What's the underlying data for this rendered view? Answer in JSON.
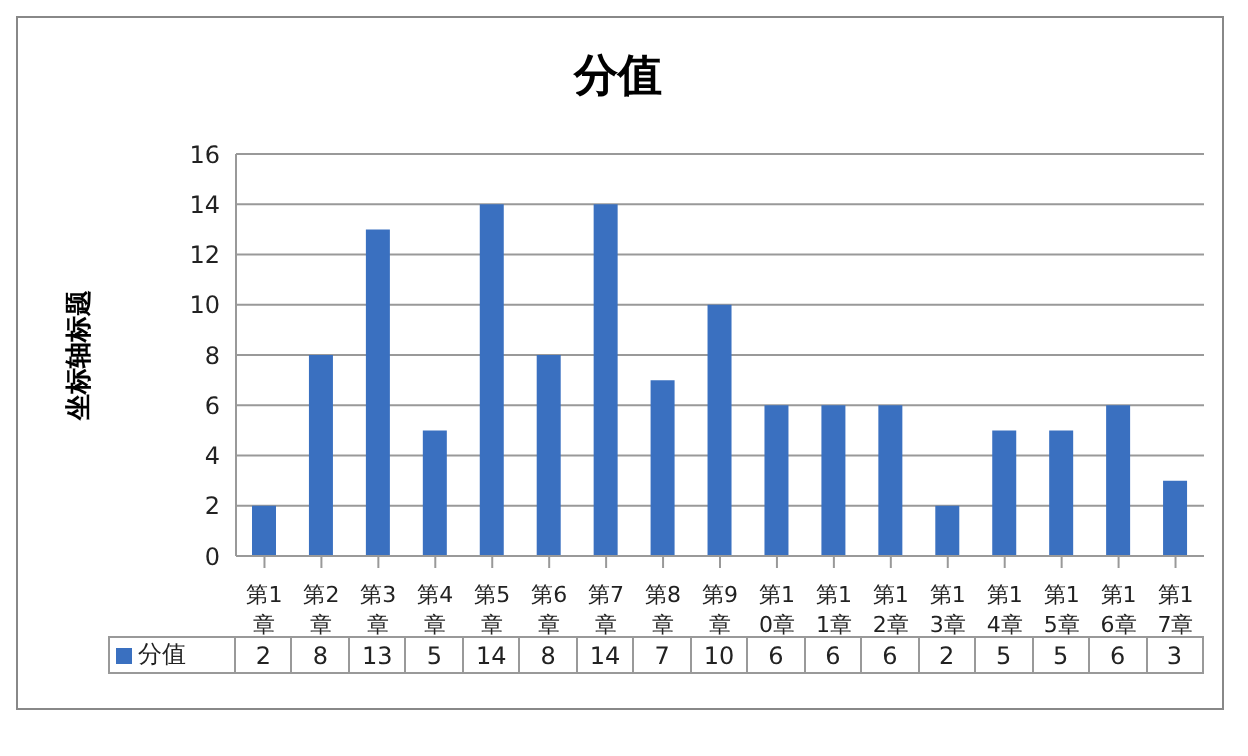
{
  "chart_data": {
    "type": "bar",
    "title": "分值",
    "ylabel": "坐标轴标题",
    "categories": [
      "第1章",
      "第2章",
      "第3章",
      "第4章",
      "第5章",
      "第6章",
      "第7章",
      "第8章",
      "第9章",
      "第10章",
      "第11章",
      "第12章",
      "第13章",
      "第14章",
      "第15章",
      "第16章",
      "第17章"
    ],
    "series": [
      {
        "name": "分值",
        "color": "#3a70c0",
        "values": [
          2,
          8,
          13,
          5,
          14,
          8,
          14,
          7,
          10,
          6,
          6,
          6,
          2,
          5,
          5,
          6,
          3
        ]
      }
    ],
    "ylim": [
      0,
      16
    ],
    "yticks": [
      0,
      2,
      4,
      6,
      8,
      10,
      12,
      14,
      16
    ],
    "grid": "y",
    "legend": "bottom",
    "data_labels": true
  }
}
